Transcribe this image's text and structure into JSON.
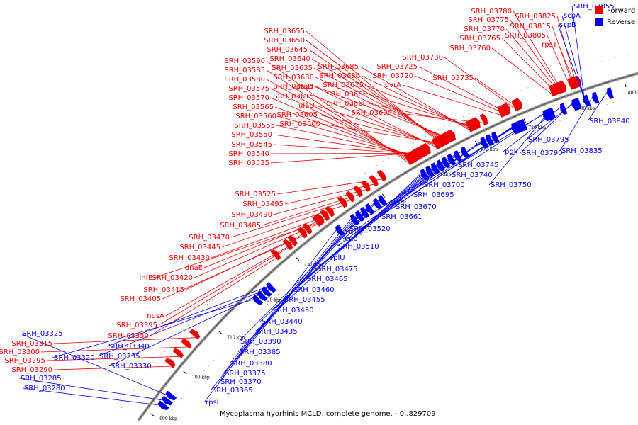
{
  "legend": {
    "forward_label": "Forward",
    "reverse_label": "Reverse",
    "forward_color": "#ee0000",
    "reverse_color": "#0000ee"
  },
  "caption": "Mycoplasma hyorhinis MCLD, complete genome. - 0..829709",
  "forward_labels": [
    "SRH_03780",
    "SRH_03775",
    "SRH_03770",
    "SRH_03765",
    "SRH_03760",
    "SRH_03825",
    "SRH_03815",
    "SRH_03805",
    "rpsT",
    "SRH_03655",
    "SRH_03650",
    "SRH_03645",
    "SRH_03640",
    "SRH_03635",
    "SRH_03630",
    "SRH_03625",
    "SRH_03685",
    "SRH_03680",
    "SRH_03675",
    "SRH_03665",
    "SRH_03660",
    "SRH_03690",
    "SRH_03730",
    "SRH_03725",
    "SRH_03720",
    "uvrA",
    "SRH_03735",
    "SRH_03590",
    "SRH_03585",
    "SRH_03580",
    "SRH_03575",
    "SRH_03570",
    "SRH_03565",
    "SRH_03560",
    "SRH_03555",
    "SRH_03550",
    "SRH_03545",
    "SRH_03540",
    "SRH_03535",
    "araD",
    "SRH_03615",
    "ulaD",
    "SRH_03605",
    "SRH_03600",
    "SRH_03525",
    "SRH_03495",
    "SRH_03490",
    "SRH_03485",
    "SRH_03470",
    "SRH_03445",
    "SRH_03430",
    "dnaE",
    "infB",
    "SRH_03420",
    "SRH_03415",
    "SRH_03405",
    "nusA",
    "SRH_03395",
    "SRH_03350",
    "SRH_03315",
    "SRH_03300",
    "SRH_03295",
    "SRH_03290"
  ],
  "reverse_labels": [
    "SRH_03855",
    "scpA",
    "scpB",
    "SRH_03840",
    "SRH_03835",
    "SRH_03795",
    "SRH_03790",
    "pgk",
    "SRH_03745",
    "SRH_03740",
    "SRH_03750",
    "SRH_03700",
    "SRH_03695",
    "SRH_03670",
    "SRH_03661",
    "SRH_03520",
    "eno",
    "SRH_03510",
    "rplU",
    "SRH_03475",
    "SRH_03465",
    "SRH_03460",
    "SRH_03455",
    "SRH_03450",
    "SRH_03440",
    "SRH_03435",
    "SRH_03390",
    "SRH_03385",
    "SRH_03380",
    "SRH_03375",
    "SRH_03370",
    "SRH_03365",
    "rpsL",
    "SRH_03325",
    "SRH_03320",
    "SRH_03340",
    "SRH_03335",
    "SRH_03330",
    "SRH_03285",
    "SRH_03280"
  ],
  "ruler_ticks": [
    "690 kbp",
    "700 kbp",
    "710 kbp",
    "720 kbp",
    "730 kbp",
    "740 kbp",
    "750 kbp",
    "760 kbp",
    "770 kbp",
    "780 kbp",
    "790 kbp",
    "800 kbp"
  ]
}
